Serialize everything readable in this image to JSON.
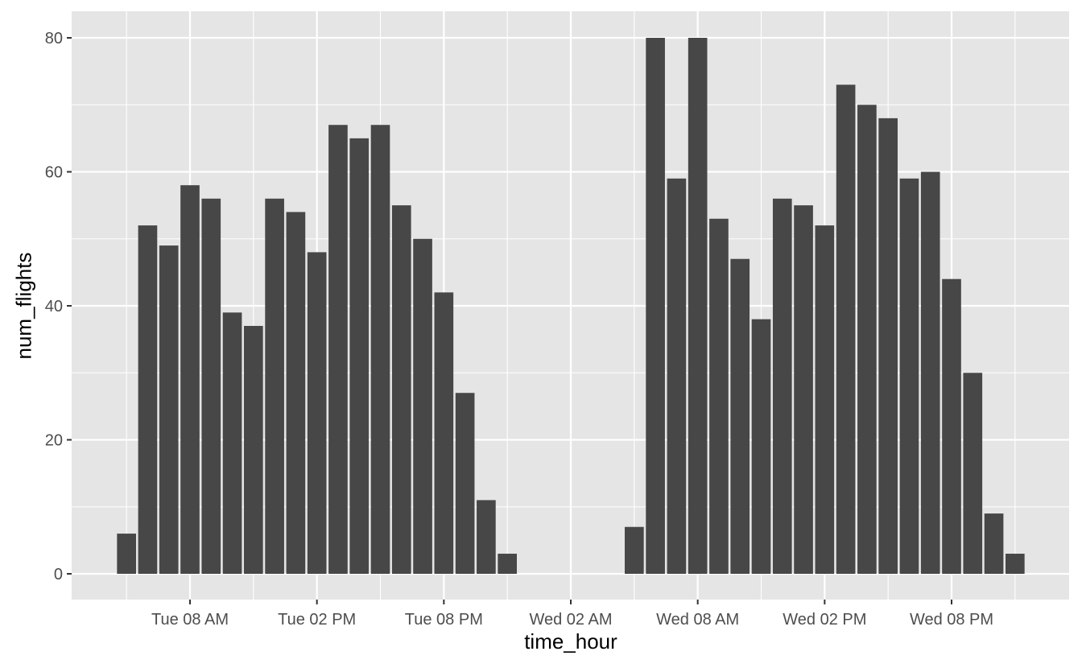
{
  "chart_data": {
    "type": "bar",
    "title": "",
    "xlabel": "time_hour",
    "ylabel": "num_flights",
    "ylim": [
      -4,
      84
    ],
    "y_ticks": [
      0,
      20,
      40,
      60,
      80
    ],
    "x_ticks": [
      "Tue 08 AM",
      "Tue 02 PM",
      "Tue 08 PM",
      "Wed 02 AM",
      "Wed 08 AM",
      "Wed 02 PM",
      "Wed 08 PM"
    ],
    "grid": true,
    "legend": null,
    "bar_color": "#474747",
    "panel_background": "#e5e5e5",
    "categories": [
      "Tue 05 AM",
      "Tue 06 AM",
      "Tue 07 AM",
      "Tue 08 AM",
      "Tue 09 AM",
      "Tue 10 AM",
      "Tue 11 AM",
      "Tue 12 PM",
      "Tue 01 PM",
      "Tue 02 PM",
      "Tue 03 PM",
      "Tue 04 PM",
      "Tue 05 PM",
      "Tue 06 PM",
      "Tue 07 PM",
      "Tue 08 PM",
      "Tue 09 PM",
      "Tue 10 PM",
      "Tue 11 PM",
      "Wed 05 AM",
      "Wed 06 AM",
      "Wed 07 AM",
      "Wed 08 AM",
      "Wed 09 AM",
      "Wed 10 AM",
      "Wed 11 AM",
      "Wed 12 PM",
      "Wed 01 PM",
      "Wed 02 PM",
      "Wed 03 PM",
      "Wed 04 PM",
      "Wed 05 PM",
      "Wed 06 PM",
      "Wed 07 PM",
      "Wed 08 PM",
      "Wed 09 PM",
      "Wed 10 PM",
      "Wed 11 PM"
    ],
    "hour_offsets": [
      0,
      1,
      2,
      3,
      4,
      5,
      6,
      7,
      8,
      9,
      10,
      11,
      12,
      13,
      14,
      15,
      16,
      17,
      18,
      24,
      25,
      26,
      27,
      28,
      29,
      30,
      31,
      32,
      33,
      34,
      35,
      36,
      37,
      38,
      39,
      40,
      41,
      42
    ],
    "values": [
      6,
      52,
      49,
      58,
      56,
      39,
      37,
      56,
      54,
      48,
      67,
      65,
      67,
      55,
      50,
      42,
      27,
      11,
      3,
      7,
      80,
      59,
      80,
      53,
      47,
      38,
      56,
      55,
      52,
      73,
      70,
      68,
      59,
      60,
      44,
      30,
      9,
      3
    ]
  }
}
